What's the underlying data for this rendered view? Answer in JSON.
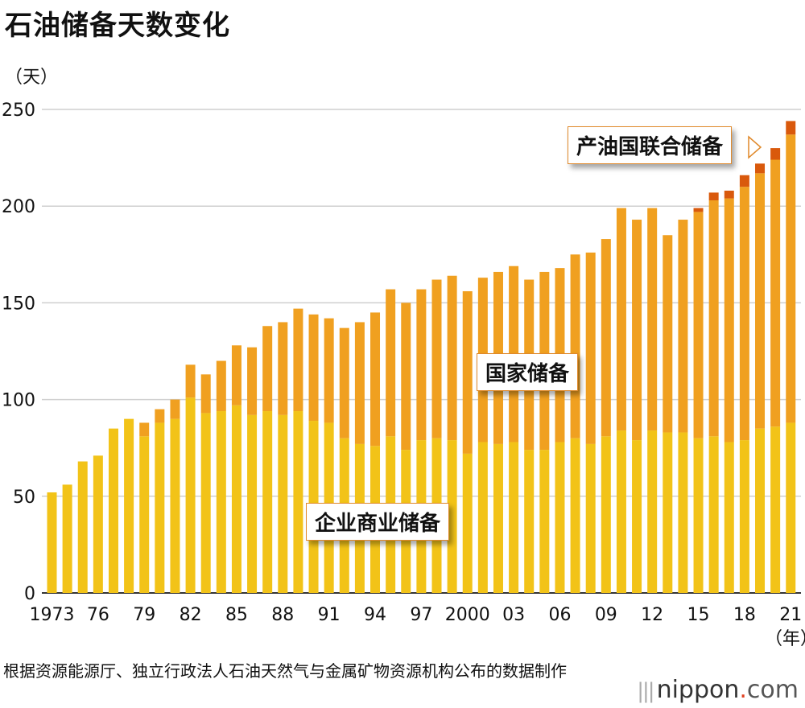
{
  "title": "石油储备天数变化",
  "y_unit": "（天）",
  "x_unit": "（年）",
  "source": "根据资源能源厅、独立行政法人石油天然气与金属矿物资源机构公布的数据制作",
  "brand": {
    "name": "nippon",
    "dot": ".",
    "tld": "com",
    "mark": "|||"
  },
  "colors": {
    "private": "#f2c318",
    "national": "#f0a020",
    "producer": "#d9590c",
    "grid": "#cfcfcf"
  },
  "chart_data": {
    "type": "bar",
    "stacked": true,
    "ylim": [
      0,
      250
    ],
    "yticks": [
      0,
      50,
      100,
      150,
      200,
      250
    ],
    "categories": [
      "1973",
      "1974",
      "1975",
      "1976",
      "1977",
      "1978",
      "1979",
      "1980",
      "1981",
      "1982",
      "1983",
      "1984",
      "1985",
      "1986",
      "1987",
      "1988",
      "1989",
      "1990",
      "1991",
      "1992",
      "1993",
      "1994",
      "1995",
      "1996",
      "1997",
      "1998",
      "1999",
      "2000",
      "2001",
      "2002",
      "2003",
      "2004",
      "2005",
      "2006",
      "2007",
      "2008",
      "2009",
      "2010",
      "2011",
      "2012",
      "2013",
      "2014",
      "2015",
      "2016",
      "2017",
      "2018",
      "2019",
      "2020",
      "2021"
    ],
    "xtick_labels": [
      {
        "index": 0,
        "label": "1973"
      },
      {
        "index": 3,
        "label": "76"
      },
      {
        "index": 6,
        "label": "79"
      },
      {
        "index": 9,
        "label": "82"
      },
      {
        "index": 12,
        "label": "85"
      },
      {
        "index": 15,
        "label": "88"
      },
      {
        "index": 18,
        "label": "91"
      },
      {
        "index": 21,
        "label": "94"
      },
      {
        "index": 24,
        "label": "97"
      },
      {
        "index": 27,
        "label": "2000"
      },
      {
        "index": 30,
        "label": "03"
      },
      {
        "index": 33,
        "label": "06"
      },
      {
        "index": 36,
        "label": "09"
      },
      {
        "index": 39,
        "label": "12"
      },
      {
        "index": 42,
        "label": "15"
      },
      {
        "index": 45,
        "label": "18"
      },
      {
        "index": 48,
        "label": "21"
      }
    ],
    "series": [
      {
        "name": "企业商业储备",
        "color": "#f2c318",
        "values": [
          52,
          56,
          68,
          71,
          85,
          90,
          81,
          88,
          90,
          101,
          93,
          94,
          97,
          92,
          94,
          92,
          94,
          89,
          88,
          80,
          77,
          76,
          81,
          74,
          79,
          80,
          79,
          72,
          78,
          77,
          78,
          74,
          74,
          78,
          80,
          77,
          81,
          84,
          79,
          84,
          83,
          83,
          80,
          81,
          78,
          79,
          85,
          86,
          88
        ]
      },
      {
        "name": "国家储备",
        "color": "#f0a020",
        "values": [
          0,
          0,
          0,
          0,
          0,
          0,
          7,
          7,
          10,
          17,
          20,
          26,
          31,
          35,
          44,
          48,
          53,
          55,
          54,
          57,
          63,
          69,
          76,
          76,
          78,
          82,
          85,
          84,
          85,
          89,
          91,
          88,
          92,
          90,
          95,
          99,
          102,
          115,
          114,
          115,
          102,
          110,
          117,
          122,
          126,
          131,
          132,
          138,
          149
        ]
      },
      {
        "name": "产油国联合储备",
        "color": "#d9590c",
        "values": [
          0,
          0,
          0,
          0,
          0,
          0,
          0,
          0,
          0,
          0,
          0,
          0,
          0,
          0,
          0,
          0,
          0,
          0,
          0,
          0,
          0,
          0,
          0,
          0,
          0,
          0,
          0,
          0,
          0,
          0,
          0,
          0,
          0,
          0,
          0,
          0,
          0,
          0,
          0,
          0,
          0,
          0,
          2,
          4,
          4,
          6,
          5,
          6,
          7
        ]
      }
    ],
    "annotations": {
      "producer": "产油国联合储备",
      "national": "国家储备",
      "private": "企业商业储备"
    }
  }
}
